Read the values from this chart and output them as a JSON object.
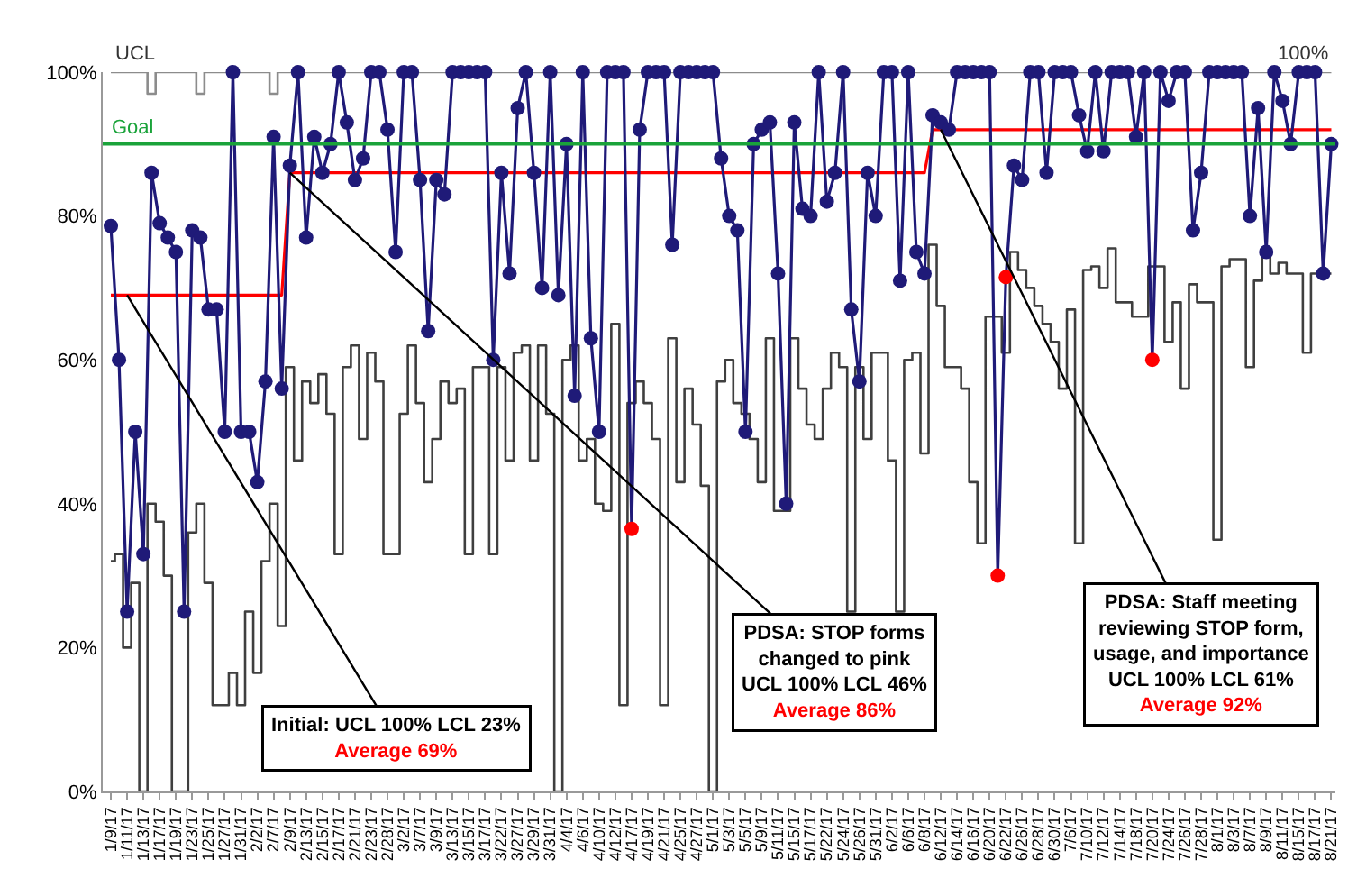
{
  "chart_data": {
    "type": "line",
    "categories": [
      "1/9/17",
      null,
      "1/11/17",
      null,
      "1/13/17",
      null,
      "1/17/17",
      null,
      "1/19/17",
      null,
      "1/23/17",
      null,
      "1/25/17",
      null,
      "1/27/17",
      null,
      "1/31/17",
      null,
      "2/2/17",
      null,
      "2/7/17",
      null,
      "2/9/17",
      null,
      "2/13/17",
      null,
      "2/15/17",
      null,
      "2/17/17",
      null,
      "2/21/17",
      null,
      "2/23/17",
      null,
      "2/28/17",
      null,
      "3/2/17",
      null,
      "3/7/17",
      null,
      "3/9/17",
      null,
      "3/13/17",
      null,
      "3/15/17",
      null,
      "3/17/17",
      null,
      "3/22/17",
      null,
      "3/27/17",
      null,
      "3/29/17",
      null,
      "3/31/17",
      null,
      "4/4/17",
      null,
      "4/6/17",
      null,
      "4/10/17",
      null,
      "4/12/17",
      null,
      "4/17/17",
      null,
      "4/19/17",
      null,
      "4/21/17",
      null,
      "4/25/17",
      null,
      "4/27/17",
      null,
      "5/1/17",
      null,
      "5/3/17",
      null,
      "5/5/17",
      null,
      "5/9/17",
      null,
      "5/11/17",
      null,
      "5/15/17",
      null,
      "5/17/17",
      null,
      "5/22/17",
      null,
      "5/24/17",
      null,
      "5/26/17",
      null,
      "5/31/17",
      null,
      "6/2/17",
      null,
      "6/6/17",
      null,
      "6/8/17",
      null,
      "6/12/17",
      null,
      "6/14/17",
      null,
      "6/16/17",
      null,
      "6/20/17",
      null,
      "6/22/17",
      null,
      "6/26/17",
      null,
      "6/28/17",
      null,
      "6/30/17",
      null,
      "7/6/17",
      null,
      "7/10/17",
      null,
      "7/12/17",
      null,
      "7/14/17",
      null,
      "7/18/17",
      null,
      "7/20/17",
      null,
      "7/24/17",
      null,
      "7/26/17",
      null,
      "7/28/17",
      null,
      "8/1/17",
      null,
      "8/3/17",
      null,
      "8/7/17",
      null,
      "8/9/17",
      null,
      "8/11/17",
      null,
      "8/15/17",
      null,
      "8/17/17",
      null,
      "8/21/17"
    ],
    "series": [
      {
        "type": "step",
        "name": "UCL",
        "color": "#8c8c8c",
        "values": [
          100,
          100,
          100,
          100,
          100,
          97,
          100,
          100,
          100,
          100,
          100,
          97,
          100,
          100,
          100,
          100,
          100,
          100,
          100,
          100,
          97,
          100,
          100,
          100,
          100,
          100,
          100,
          100,
          100,
          100,
          100,
          100,
          100,
          100,
          100,
          100,
          100,
          100,
          100,
          100,
          100,
          100,
          100,
          100,
          100,
          100,
          100,
          100,
          100,
          100,
          100,
          100,
          100,
          100,
          100,
          100,
          100,
          100,
          100,
          100,
          100,
          100,
          100,
          100,
          100,
          100,
          100,
          100,
          100,
          100,
          100,
          100,
          100,
          100,
          100,
          100,
          100,
          100,
          100,
          100,
          100,
          100,
          100,
          100,
          100,
          100,
          100,
          100,
          100,
          100,
          100,
          100,
          100,
          100,
          100,
          100,
          100,
          100,
          100,
          100,
          100,
          100,
          100,
          100,
          100,
          100,
          100,
          100,
          100,
          100,
          100,
          100,
          100,
          100,
          100,
          100,
          100,
          100,
          100,
          100,
          100,
          100,
          100,
          100,
          100,
          100,
          100,
          100,
          100,
          100,
          100,
          100,
          100,
          100,
          100,
          100,
          100,
          100,
          100,
          100,
          100,
          100,
          100,
          100,
          100,
          100,
          100,
          100,
          100,
          100,
          100
        ]
      },
      {
        "type": "step",
        "color": "#3f3f3f",
        "values": [
          32,
          33,
          20,
          29,
          0,
          40,
          37.5,
          30,
          0,
          0,
          36,
          40,
          29,
          12,
          12,
          16.5,
          12,
          25,
          16.5,
          32,
          40,
          23,
          59,
          46,
          57,
          54,
          58,
          52.5,
          33,
          59,
          62,
          49,
          61,
          57,
          33,
          33,
          52.5,
          62,
          54,
          43,
          49,
          57,
          54,
          56,
          33,
          59,
          59,
          33,
          59,
          46,
          61,
          62,
          46,
          62,
          52.5,
          0,
          60,
          62,
          46,
          49,
          40,
          39,
          65,
          12,
          54,
          57,
          54,
          49,
          12,
          63,
          43,
          56,
          51,
          42.5,
          0,
          57,
          60,
          54,
          52.5,
          49,
          43,
          63,
          39,
          39,
          63,
          56,
          51,
          49,
          56,
          61,
          59,
          25,
          59,
          49,
          61,
          61,
          46,
          25,
          60,
          61,
          47,
          76,
          67.5,
          59,
          59,
          56,
          43,
          34.5,
          66,
          66,
          61,
          75,
          72.5,
          70,
          67.5,
          65,
          62.5,
          56,
          67,
          34.5,
          72.5,
          73,
          70,
          75.5,
          68,
          68,
          66,
          66,
          73,
          73,
          62.5,
          68,
          56,
          70.5,
          68,
          68,
          35,
          73,
          74,
          74,
          59,
          71,
          75,
          72,
          73.5,
          72,
          72,
          61,
          72,
          72,
          72
        ]
      },
      {
        "type": "line",
        "color": "#ff0000",
        "values": [
          69,
          69,
          69,
          69,
          69,
          69,
          69,
          69,
          69,
          69,
          69,
          69,
          69,
          69,
          69,
          69,
          69,
          69,
          69,
          69,
          69,
          69,
          86,
          86,
          86,
          86,
          86,
          86,
          86,
          86,
          86,
          86,
          86,
          86,
          86,
          86,
          86,
          86,
          86,
          86,
          86,
          86,
          86,
          86,
          86,
          86,
          86,
          86,
          86,
          86,
          86,
          86,
          86,
          86,
          86,
          86,
          86,
          86,
          86,
          86,
          86,
          86,
          86,
          86,
          86,
          86,
          86,
          86,
          86,
          86,
          86,
          86,
          86,
          86,
          86,
          86,
          86,
          86,
          86,
          86,
          86,
          86,
          86,
          86,
          86,
          86,
          86,
          86,
          86,
          86,
          86,
          86,
          86,
          86,
          86,
          86,
          86,
          86,
          86,
          86,
          86,
          92,
          92,
          92,
          92,
          92,
          92,
          92,
          92,
          92,
          92,
          92,
          92,
          92,
          92,
          92,
          92,
          92,
          92,
          92,
          92,
          92,
          92,
          92,
          92,
          92,
          92,
          92,
          92,
          92,
          92,
          92,
          92,
          92,
          92,
          92,
          92,
          92,
          92,
          92,
          92,
          92,
          92,
          92,
          92,
          92,
          92,
          92,
          92,
          92,
          92
        ]
      },
      {
        "type": "line",
        "marker": "circle",
        "color": "#1f1a78",
        "values": [
          78.6,
          60,
          25,
          50,
          33,
          86,
          79,
          77,
          75,
          25,
          78,
          77,
          67,
          67,
          50,
          100,
          50,
          50,
          43,
          57,
          91,
          56,
          87,
          100,
          77,
          91,
          86,
          90,
          100,
          93,
          85,
          88,
          100,
          100,
          92,
          75,
          100,
          100,
          85,
          64,
          85,
          83,
          100,
          100,
          100,
          100,
          100,
          60,
          86,
          72,
          95,
          100,
          86,
          70,
          100,
          69,
          90,
          55,
          100,
          63,
          50,
          100,
          100,
          100,
          36.5,
          92,
          100,
          100,
          100,
          76,
          100,
          100,
          100,
          100,
          100,
          88,
          80,
          78,
          50,
          90,
          92,
          93,
          72,
          40,
          93,
          81,
          80,
          100,
          82,
          86,
          100,
          67,
          57,
          86,
          80,
          100,
          100,
          71,
          100,
          75,
          72,
          94,
          93,
          92,
          100,
          100,
          100,
          100,
          100,
          30,
          71.5,
          87,
          85,
          100,
          100,
          86,
          100,
          100,
          100,
          94,
          89,
          100,
          89,
          100,
          100,
          100,
          91,
          100,
          60,
          100,
          96,
          100,
          100,
          78,
          86,
          100,
          100,
          100,
          100,
          100,
          80,
          95,
          75,
          100,
          96,
          90,
          100,
          100,
          100,
          72,
          90
        ],
        "colors": [
          "#1f1a78",
          "#1f1a78",
          "#1f1a78",
          "#1f1a78",
          "#1f1a78",
          "#1f1a78",
          "#1f1a78",
          "#1f1a78",
          "#1f1a78",
          "#1f1a78",
          "#1f1a78",
          "#1f1a78",
          "#1f1a78",
          "#1f1a78",
          "#1f1a78",
          "#1f1a78",
          "#1f1a78",
          "#1f1a78",
          "#1f1a78",
          "#1f1a78",
          "#1f1a78",
          "#1f1a78",
          "#1f1a78",
          "#1f1a78",
          "#1f1a78",
          "#1f1a78",
          "#1f1a78",
          "#1f1a78",
          "#1f1a78",
          "#1f1a78",
          "#1f1a78",
          "#1f1a78",
          "#1f1a78",
          "#1f1a78",
          "#1f1a78",
          "#1f1a78",
          "#1f1a78",
          "#1f1a78",
          "#1f1a78",
          "#1f1a78",
          "#1f1a78",
          "#1f1a78",
          "#1f1a78",
          "#1f1a78",
          "#1f1a78",
          "#1f1a78",
          "#1f1a78",
          "#1f1a78",
          "#1f1a78",
          "#1f1a78",
          "#1f1a78",
          "#1f1a78",
          "#1f1a78",
          "#1f1a78",
          "#1f1a78",
          "#1f1a78",
          "#1f1a78",
          "#1f1a78",
          "#1f1a78",
          "#1f1a78",
          "#1f1a78",
          "#1f1a78",
          "#1f1a78",
          "#1f1a78",
          "#ff0000",
          "#1f1a78",
          "#1f1a78",
          "#1f1a78",
          "#1f1a78",
          "#1f1a78",
          "#1f1a78",
          "#1f1a78",
          "#1f1a78",
          "#1f1a78",
          "#1f1a78",
          "#1f1a78",
          "#1f1a78",
          "#1f1a78",
          "#1f1a78",
          "#1f1a78",
          "#1f1a78",
          "#1f1a78",
          "#1f1a78",
          "#1f1a78",
          "#1f1a78",
          "#1f1a78",
          "#1f1a78",
          "#1f1a78",
          "#1f1a78",
          "#1f1a78",
          "#1f1a78",
          "#1f1a78",
          "#1f1a78",
          "#1f1a78",
          "#1f1a78",
          "#1f1a78",
          "#1f1a78",
          "#1f1a78",
          "#1f1a78",
          "#1f1a78",
          "#1f1a78",
          "#1f1a78",
          "#1f1a78",
          "#1f1a78",
          "#1f1a78",
          "#1f1a78",
          "#1f1a78",
          "#1f1a78",
          "#1f1a78",
          "#ff0000",
          "#ff0000",
          "#1f1a78",
          "#1f1a78",
          "#1f1a78",
          "#1f1a78",
          "#1f1a78",
          "#1f1a78",
          "#1f1a78",
          "#1f1a78",
          "#1f1a78",
          "#1f1a78",
          "#1f1a78",
          "#1f1a78",
          "#1f1a78",
          "#1f1a78",
          "#1f1a78",
          "#1f1a78",
          "#1f1a78",
          "#ff0000",
          "#1f1a78",
          "#1f1a78",
          "#1f1a78",
          "#1f1a78",
          "#1f1a78",
          "#1f1a78",
          "#1f1a78",
          "#1f1a78",
          "#1f1a78",
          "#1f1a78",
          "#1f1a78",
          "#1f1a78",
          "#1f1a78",
          "#1f1a78",
          "#1f1a78",
          "#1f1a78",
          "#1f1a78",
          "#1f1a78",
          "#1f1a78",
          "#1f1a78",
          "#1f1a78",
          "#1f1a78"
        ]
      }
    ],
    "ref_lines": [
      {
        "axis": "y",
        "value": 90,
        "label": "Goal",
        "color": "#1aa33a"
      }
    ],
    "annotations": [
      {
        "text": "Initial: UCL 100% LCL 23%\nAverage 69%",
        "x": "1/11/17",
        "y": 69
      },
      {
        "text": "PDSA: STOP forms\nchanged to pink\nUCL 100% LCL 46%\nAverage 86%",
        "x": "2/9/17",
        "y": 86
      },
      {
        "text": "PDSA: Staff meeting\nreviewing STOP form,\nusage, and importance\nUCL 100% LCL 61%\nAverage 92%",
        "x": "6/12/17",
        "y": 92
      },
      {
        "text": "100%",
        "x": "8/21/17",
        "y": 100
      }
    ],
    "ylim": [
      0,
      100
    ],
    "yticks": [
      {
        "value": 0,
        "label": "0%"
      },
      {
        "value": 20,
        "label": "20%"
      },
      {
        "value": 40,
        "label": "40%"
      },
      {
        "value": 60,
        "label": "60%"
      },
      {
        "value": 80,
        "label": "80%"
      },
      {
        "value": 100,
        "label": "100%"
      }
    ],
    "legend": false
  }
}
